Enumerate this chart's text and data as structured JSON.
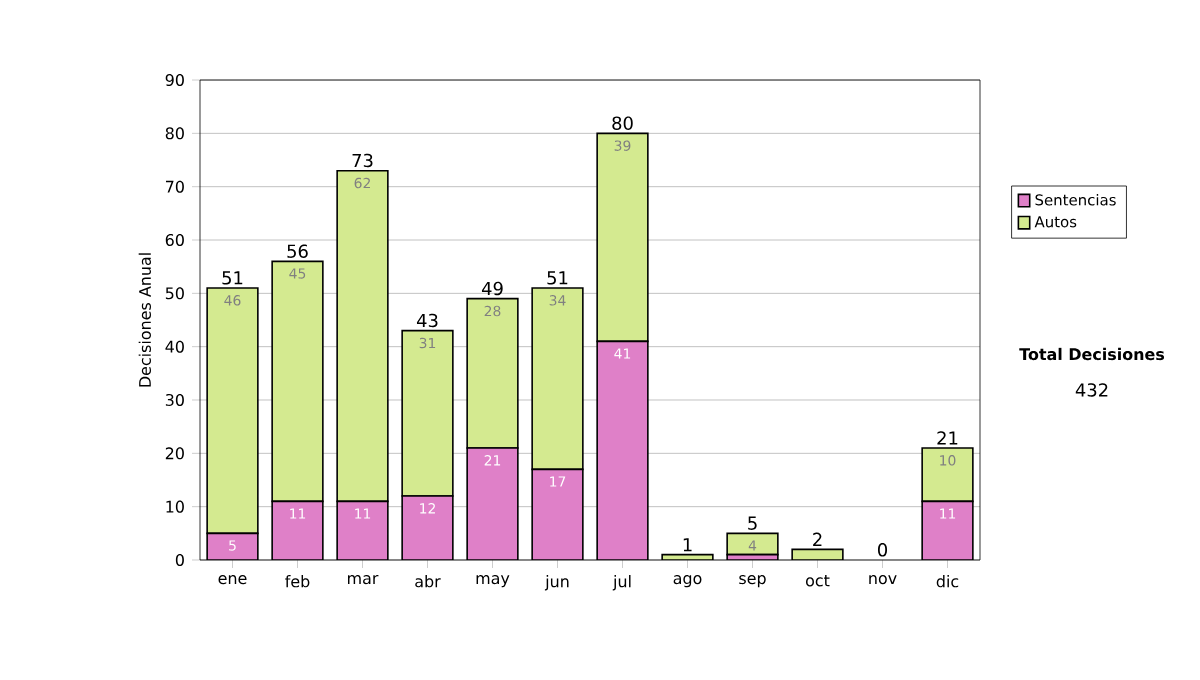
{
  "chart_data": {
    "type": "bar",
    "stacked": true,
    "ylabel": "Decisiones Anual",
    "categories": [
      "ene",
      "feb",
      "mar",
      "abr",
      "may",
      "jun",
      "jul",
      "ago",
      "sep",
      "oct",
      "nov",
      "dic"
    ],
    "series": [
      {
        "name": "Sentencias",
        "color": "#df80c8",
        "values": [
          5,
          11,
          11,
          12,
          21,
          17,
          41,
          0,
          1,
          0,
          0,
          11
        ],
        "value_labels": [
          "5",
          "11",
          "11",
          "12",
          "21",
          "17",
          "41",
          null,
          null,
          null,
          null,
          "11"
        ]
      },
      {
        "name": "Autos",
        "color": "#d4ea90",
        "values": [
          46,
          45,
          62,
          31,
          28,
          34,
          39,
          1,
          4,
          2,
          0,
          10
        ],
        "value_labels": [
          "46",
          "45",
          "62",
          "31",
          "28",
          "34",
          "39",
          null,
          "4",
          null,
          null,
          "10"
        ]
      }
    ],
    "totals": [
      "51",
      "56",
      "73",
      "43",
      "49",
      "51",
      "80",
      "1",
      "5",
      "2",
      "0",
      "21"
    ],
    "ylim": [
      0,
      90
    ],
    "yticks": [
      0,
      10,
      20,
      30,
      40,
      50,
      60,
      70,
      80,
      90
    ],
    "grid": "y",
    "legend": "right",
    "annotations": [
      "Total Decisiones",
      "432"
    ]
  }
}
